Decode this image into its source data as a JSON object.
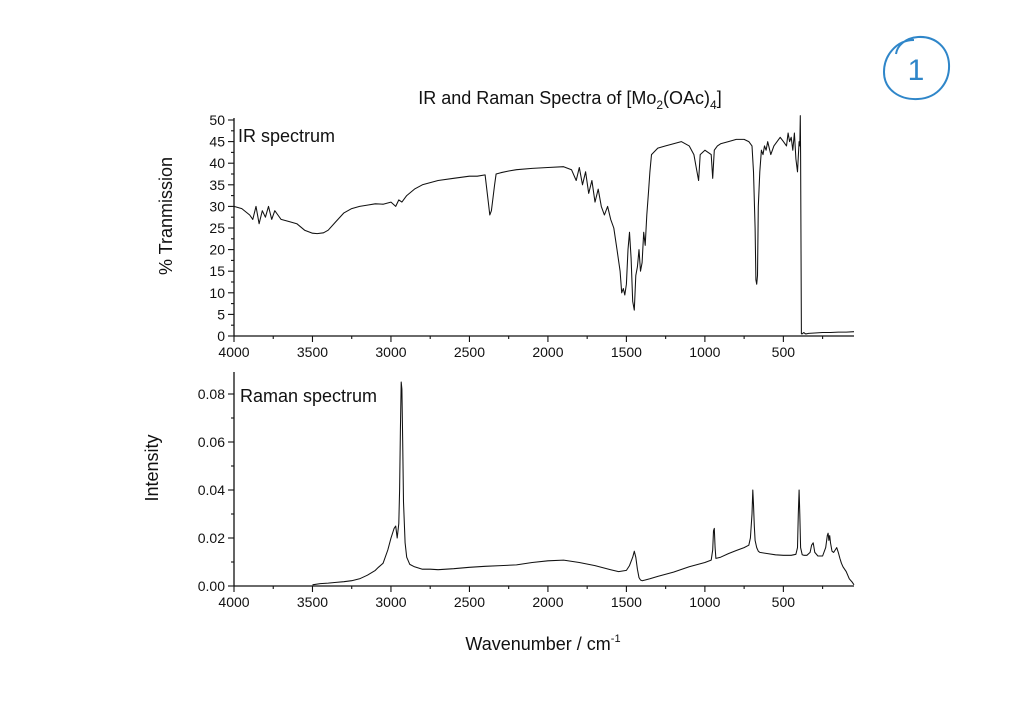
{
  "page": {
    "title_main": "IR and Raman Spectra of [Mo",
    "title_sub1": "2",
    "title_mid": "(OAc)",
    "title_sub2": "4",
    "title_end": "]",
    "xlabel_main": "Wavenumber / cm",
    "xlabel_sup": "-1",
    "page_number": "1"
  },
  "chart_data": [
    {
      "type": "line",
      "label": "IR spectrum",
      "ylabel": "% Tranmission",
      "xlim": [
        4000,
        50
      ],
      "ylim": [
        0,
        50
      ],
      "x_ticks": [
        4000,
        3500,
        3000,
        2500,
        2000,
        1500,
        1000,
        500
      ],
      "y_ticks": [
        0,
        5,
        10,
        15,
        20,
        25,
        30,
        35,
        40,
        45,
        50
      ],
      "grid": false,
      "series": [
        {
          "x": [
            4000,
            3950,
            3900,
            3880,
            3860,
            3840,
            3820,
            3800,
            3780,
            3760,
            3740,
            3720,
            3700,
            3650,
            3600,
            3550,
            3500,
            3470,
            3430,
            3400,
            3350,
            3300,
            3250,
            3200,
            3150,
            3100,
            3050,
            3000,
            2970,
            2950,
            2930,
            2900,
            2850,
            2800,
            2700,
            2600,
            2500,
            2450,
            2400,
            2380,
            2370,
            2360,
            2350,
            2340,
            2330,
            2300,
            2250,
            2200,
            2100,
            2000,
            1900,
            1850,
            1820,
            1800,
            1780,
            1760,
            1740,
            1720,
            1700,
            1680,
            1660,
            1640,
            1620,
            1600,
            1580,
            1560,
            1540,
            1530,
            1520,
            1510,
            1500,
            1490,
            1480,
            1470,
            1460,
            1450,
            1440,
            1430,
            1420,
            1410,
            1400,
            1390,
            1380,
            1370,
            1360,
            1350,
            1340,
            1300,
            1250,
            1200,
            1150,
            1100,
            1070,
            1050,
            1040,
            1030,
            1000,
            960,
            950,
            940,
            920,
            900,
            850,
            800,
            750,
            720,
            700,
            690,
            680,
            675,
            670,
            665,
            660,
            650,
            640,
            630,
            620,
            610,
            600,
            580,
            560,
            540,
            520,
            500,
            480,
            470,
            460,
            450,
            440,
            430,
            420,
            410,
            400,
            395,
            392,
            390,
            385,
            380,
            370,
            360,
            350,
            340,
            300,
            250,
            200,
            150,
            100,
            50
          ],
          "y": [
            30,
            29.5,
            28,
            27,
            30,
            26,
            29,
            27.5,
            30,
            27,
            29,
            28,
            27,
            26.5,
            26,
            24.5,
            23.8,
            23.7,
            23.9,
            24.5,
            26.5,
            28.5,
            29.5,
            30,
            30.3,
            30.6,
            30.5,
            31,
            30,
            31.5,
            31,
            32.5,
            34,
            35,
            36,
            36.5,
            37,
            37,
            37.3,
            31,
            28,
            29,
            32,
            35,
            37.5,
            37.8,
            38.2,
            38.5,
            38.8,
            39,
            39.2,
            38.5,
            36,
            39,
            35,
            38,
            33,
            36,
            31,
            34,
            30,
            28,
            30,
            27,
            25,
            20,
            15,
            10,
            11,
            9.5,
            12,
            20,
            24,
            18,
            8,
            6,
            14,
            16,
            20,
            15,
            17,
            24,
            21,
            28,
            33,
            38,
            42,
            43.5,
            44,
            44.5,
            45,
            44,
            42,
            38,
            36,
            42,
            43,
            42,
            36.5,
            43,
            44,
            44.5,
            45,
            45.5,
            45.5,
            45,
            44,
            38,
            25,
            13,
            12,
            14,
            30,
            38,
            43,
            42,
            44,
            43,
            45,
            42,
            44,
            45,
            46,
            45,
            44,
            47,
            45,
            46,
            43,
            47,
            41,
            38,
            45,
            44,
            51,
            42,
            0.5,
            0.5,
            0.8,
            0.5,
            0.5,
            0.6,
            0.7,
            0.8,
            0.8,
            0.9,
            0.9,
            1.0
          ]
        }
      ]
    },
    {
      "type": "line",
      "label": "Raman spectrum",
      "ylabel": "Intensity",
      "xlim": [
        4000,
        50
      ],
      "ylim": [
        0,
        0.085
      ],
      "x_ticks": [
        4000,
        3500,
        3000,
        2500,
        2000,
        1500,
        1000,
        500
      ],
      "y_ticks": [
        0.0,
        0.02,
        0.04,
        0.06,
        0.08
      ],
      "y_tick_labels": [
        "0.00",
        "0.02",
        "0.04",
        "0.06",
        "0.08"
      ],
      "grid": false,
      "series": [
        {
          "x": [
            3500,
            3450,
            3400,
            3350,
            3300,
            3250,
            3200,
            3150,
            3100,
            3080,
            3050,
            3020,
            3000,
            2980,
            2970,
            2960,
            2950,
            2945,
            2940,
            2935,
            2930,
            2925,
            2920,
            2910,
            2900,
            2880,
            2850,
            2800,
            2750,
            2700,
            2600,
            2500,
            2400,
            2300,
            2200,
            2100,
            2000,
            1900,
            1800,
            1700,
            1600,
            1550,
            1500,
            1480,
            1460,
            1450,
            1440,
            1430,
            1420,
            1410,
            1400,
            1380,
            1350,
            1300,
            1200,
            1100,
            1000,
            960,
            950,
            945,
            940,
            935,
            930,
            900,
            850,
            800,
            750,
            720,
            710,
            700,
            695,
            690,
            685,
            680,
            670,
            660,
            650,
            600,
            550,
            500,
            450,
            420,
            410,
            405,
            400,
            395,
            390,
            380,
            370,
            350,
            330,
            320,
            310,
            300,
            280,
            250,
            230,
            220,
            215,
            210,
            205,
            200,
            190,
            180,
            170,
            160,
            150,
            140,
            130,
            120,
            100,
            80,
            60,
            50
          ],
          "y": [
            0.0005,
            0.001,
            0.0012,
            0.0015,
            0.0018,
            0.0022,
            0.003,
            0.0045,
            0.0065,
            0.0078,
            0.0095,
            0.015,
            0.02,
            0.024,
            0.025,
            0.02,
            0.026,
            0.04,
            0.065,
            0.085,
            0.082,
            0.06,
            0.035,
            0.018,
            0.012,
            0.009,
            0.008,
            0.007,
            0.007,
            0.0068,
            0.0072,
            0.0078,
            0.0082,
            0.0085,
            0.0088,
            0.0098,
            0.0105,
            0.0108,
            0.0098,
            0.0085,
            0.0068,
            0.006,
            0.0065,
            0.0085,
            0.012,
            0.0145,
            0.012,
            0.007,
            0.0035,
            0.0025,
            0.0022,
            0.0025,
            0.003,
            0.004,
            0.0058,
            0.008,
            0.0098,
            0.0108,
            0.015,
            0.023,
            0.024,
            0.016,
            0.0115,
            0.012,
            0.0135,
            0.0148,
            0.016,
            0.017,
            0.02,
            0.03,
            0.04,
            0.034,
            0.025,
            0.019,
            0.016,
            0.0145,
            0.014,
            0.0135,
            0.013,
            0.0128,
            0.0128,
            0.0132,
            0.016,
            0.03,
            0.04,
            0.03,
            0.016,
            0.013,
            0.0128,
            0.0128,
            0.014,
            0.017,
            0.018,
            0.014,
            0.0125,
            0.0125,
            0.016,
            0.021,
            0.022,
            0.019,
            0.021,
            0.018,
            0.0145,
            0.014,
            0.015,
            0.016,
            0.014,
            0.0115,
            0.0095,
            0.008,
            0.006,
            0.003,
            0.0015,
            0.0005
          ]
        }
      ]
    }
  ]
}
